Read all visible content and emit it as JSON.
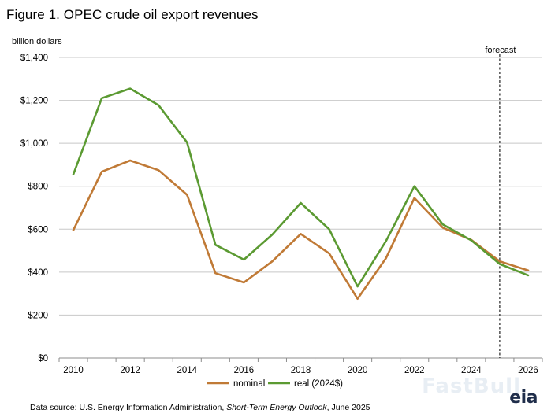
{
  "chart_data": {
    "type": "line",
    "title": "Figure 1. OPEC crude oil export revenues",
    "ylabel": "billion dollars",
    "xlabel": "",
    "x": [
      2010,
      2011,
      2012,
      2013,
      2014,
      2015,
      2016,
      2017,
      2018,
      2019,
      2020,
      2021,
      2022,
      2023,
      2024,
      2025,
      2026
    ],
    "x_ticks": [
      "2010",
      "2012",
      "2014",
      "2016",
      "2018",
      "2020",
      "2022",
      "2024",
      "2026"
    ],
    "y_ticks": [
      "$0",
      "$200",
      "$400",
      "$600",
      "$800",
      "$1,000",
      "$1,200",
      "$1,400"
    ],
    "ylim": [
      0,
      1400
    ],
    "grid": true,
    "series": [
      {
        "name": "nominal",
        "color": "#c07a36",
        "values": [
          595,
          868,
          920,
          875,
          760,
          395,
          352,
          450,
          578,
          487,
          276,
          465,
          745,
          607,
          550,
          450,
          408
        ]
      },
      {
        "name": "real (2024$)",
        "color": "#5b9a32",
        "values": [
          855,
          1210,
          1255,
          1177,
          1004,
          527,
          458,
          575,
          722,
          600,
          333,
          545,
          800,
          622,
          548,
          438,
          385
        ]
      }
    ],
    "forecast_start": 2025,
    "annotation": "forecast",
    "legend_position": "bottom-center"
  },
  "source": {
    "prefix": "Data source: U.S. Energy Information Administration, ",
    "italic": "Short-Term Energy Outlook",
    "suffix": ", June 2025"
  },
  "logo": "eia",
  "watermark": "FastBull"
}
